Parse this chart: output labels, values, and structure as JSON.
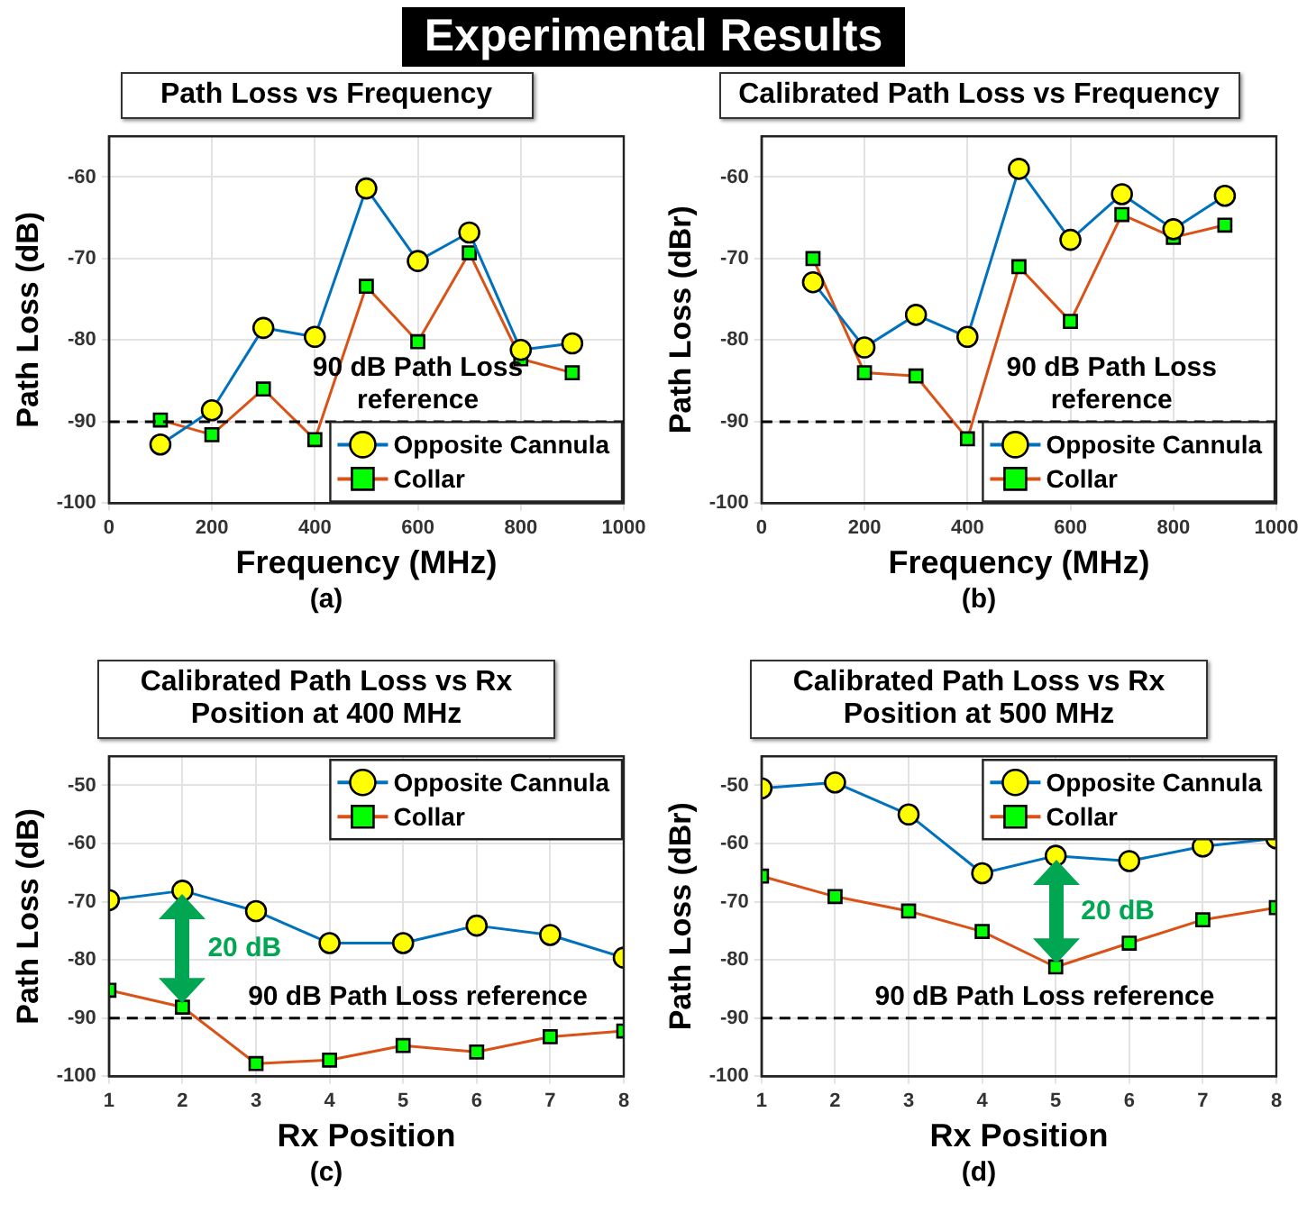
{
  "chart_data": [
    {
      "type": "line",
      "title": "Path Loss vs Frequency",
      "xlabel": "Frequency (MHz)",
      "ylabel": "Path Loss (dB)",
      "x": [
        100,
        200,
        300,
        400,
        500,
        600,
        700,
        800,
        900
      ],
      "series": [
        {
          "name": "Opposite Cannula",
          "color": "#0072bd",
          "marker": "circle",
          "values": [
            -92.8,
            -88.6,
            -78.5,
            -79.6,
            -61.4,
            -70.3,
            -66.8,
            -81.2,
            -80.4
          ]
        },
        {
          "name": "Collar",
          "color": "#d95319",
          "marker": "square",
          "values": [
            -89.8,
            -91.6,
            -86,
            -92.2,
            -73.4,
            -80.2,
            -69.3,
            -82.3,
            -84
          ]
        }
      ],
      "xlim": [
        0,
        1000
      ],
      "xticks": [
        0,
        200,
        400,
        600,
        800,
        1000
      ],
      "ylim": [
        -100,
        -55
      ],
      "yticks": [
        -100,
        -90,
        -80,
        -70,
        -60
      ],
      "grid": true,
      "legend": "bottom right",
      "ref_lines": [
        {
          "axis": "y",
          "value": -90,
          "label": "90 dB Path Loss reference",
          "line_style": "dashed"
        }
      ],
      "annotations": [
        "Experimental Results",
        "(a)"
      ]
    },
    {
      "type": "line",
      "title": "Calibrated Path Loss vs Frequency",
      "xlabel": "Frequency (MHz)",
      "ylabel": "Path Loss (dBr)",
      "x": [
        100,
        200,
        300,
        400,
        500,
        600,
        700,
        800,
        900
      ],
      "series": [
        {
          "name": "Opposite Cannula",
          "color": "#0072bd",
          "marker": "circle",
          "values": [
            -72.9,
            -80.9,
            -76.9,
            -79.6,
            -59,
            -67.7,
            -62.1,
            -66.4,
            -62.3
          ]
        },
        {
          "name": "Collar",
          "color": "#d95319",
          "marker": "square",
          "values": [
            -70,
            -84,
            -84.4,
            -92.1,
            -71,
            -77.7,
            -64.6,
            -67.4,
            -65.9
          ]
        }
      ],
      "xlim": [
        0,
        1000
      ],
      "xticks": [
        0,
        200,
        400,
        600,
        800,
        1000
      ],
      "ylim": [
        -100,
        -55
      ],
      "yticks": [
        -100,
        -90,
        -80,
        -70,
        -60
      ],
      "grid": true,
      "legend": "bottom right",
      "ref_lines": [
        {
          "axis": "y",
          "value": -90,
          "label": "90 dB Path Loss reference",
          "line_style": "dashed"
        }
      ],
      "annotations": [
        "(b)"
      ]
    },
    {
      "type": "line",
      "title": "Calibrated Path Loss vs Rx Position at 400 MHz",
      "xlabel": "Rx Position",
      "ylabel": "Path Loss (dB)",
      "x": [
        1,
        2,
        3,
        4,
        5,
        6,
        7,
        8
      ],
      "series": [
        {
          "name": "Opposite Cannula",
          "color": "#0072bd",
          "marker": "circle",
          "values": [
            -69.7,
            -68.1,
            -71.6,
            -77.1,
            -77.1,
            -74.1,
            -75.7,
            -79.6
          ]
        },
        {
          "name": "Collar",
          "color": "#d95319",
          "marker": "square",
          "values": [
            -85.2,
            -88.1,
            -97.8,
            -97.2,
            -94.7,
            -95.8,
            -93.2,
            -92.2
          ]
        }
      ],
      "xlim": [
        1,
        8
      ],
      "xticks": [
        1,
        2,
        3,
        4,
        5,
        6,
        7,
        8
      ],
      "ylim": [
        -100,
        -45
      ],
      "yticks": [
        -100,
        -90,
        -80,
        -70,
        -60,
        -50
      ],
      "grid": true,
      "legend": "top right",
      "ref_lines": [
        {
          "axis": "y",
          "value": -90,
          "label": "90 dB Path Loss reference",
          "line_style": "dashed"
        }
      ],
      "annotations": [
        "20 dB",
        "(c)"
      ]
    },
    {
      "type": "line",
      "title": "Calibrated Path Loss vs Rx Position at 500 MHz",
      "xlabel": "Rx Position",
      "ylabel": "Path Loss (dBr)",
      "x": [
        1,
        2,
        3,
        4,
        5,
        6,
        7,
        8
      ],
      "series": [
        {
          "name": "Opposite Cannula",
          "color": "#0072bd",
          "marker": "circle",
          "values": [
            -50.5,
            -49.5,
            -55,
            -65.1,
            -62.1,
            -63,
            -60.5,
            -59.1
          ]
        },
        {
          "name": "Collar",
          "color": "#d95319",
          "marker": "square",
          "values": [
            -65.6,
            -69.1,
            -71.6,
            -75.1,
            -81.2,
            -77.1,
            -73.1,
            -71
          ]
        }
      ],
      "xlim": [
        1,
        8
      ],
      "xticks": [
        1,
        2,
        3,
        4,
        5,
        6,
        7,
        8
      ],
      "ylim": [
        -100,
        -45
      ],
      "yticks": [
        -100,
        -90,
        -80,
        -70,
        -60,
        -50
      ],
      "grid": true,
      "legend": "top right",
      "ref_lines": [
        {
          "axis": "y",
          "value": -90,
          "label": "90 dB Path Loss reference",
          "line_style": "dashed"
        }
      ],
      "annotations": [
        "20 dB",
        "(d)"
      ]
    }
  ]
}
